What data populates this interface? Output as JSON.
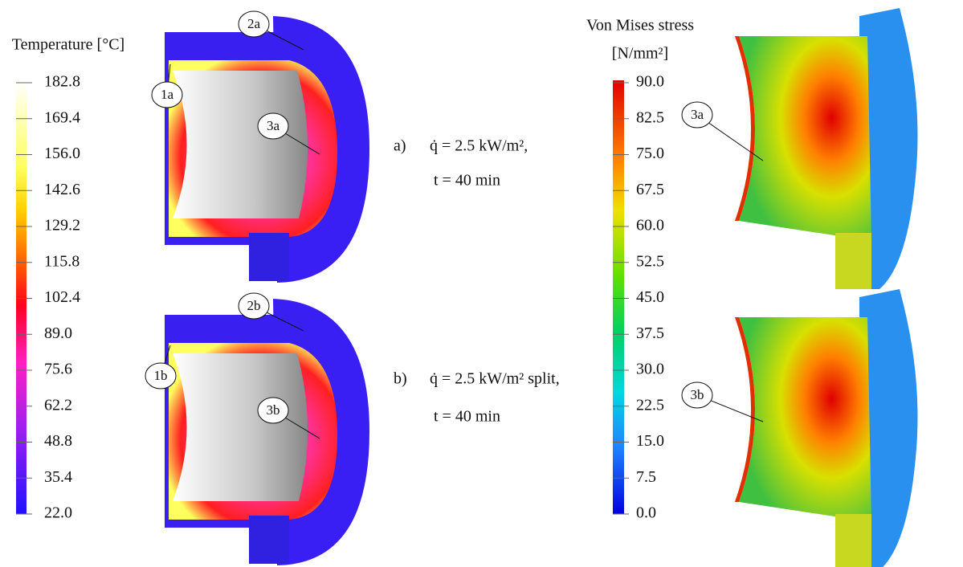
{
  "temperature_scale": {
    "title": "Temperature [°C]",
    "ticks": [
      "182.8",
      "169.4",
      "156.0",
      "142.6",
      "129.2",
      "115.8",
      "102.4",
      "89.0",
      "75.6",
      "62.2",
      "48.8",
      "35.4",
      "22.0"
    ]
  },
  "stress_scale": {
    "title": [
      "Von Mises stress",
      "[N/mm²]"
    ],
    "ticks": [
      "90.0",
      "82.5",
      "75.0",
      "67.5",
      "60.0",
      "52.5",
      "45.0",
      "37.5",
      "30.0",
      "22.5",
      "15.0",
      "7.5",
      "0.0"
    ]
  },
  "cases": [
    {
      "label": "a)",
      "flux": "q̇ = 2.5 kW/m²,",
      "time": "t = 40 min",
      "points": [
        "1a",
        "2a",
        "3a"
      ]
    },
    {
      "label": "b)",
      "flux": "q̇ = 2.5 kW/m² split,",
      "time": "t = 40 min",
      "points": [
        "1b",
        "2b",
        "3b"
      ]
    }
  ]
}
